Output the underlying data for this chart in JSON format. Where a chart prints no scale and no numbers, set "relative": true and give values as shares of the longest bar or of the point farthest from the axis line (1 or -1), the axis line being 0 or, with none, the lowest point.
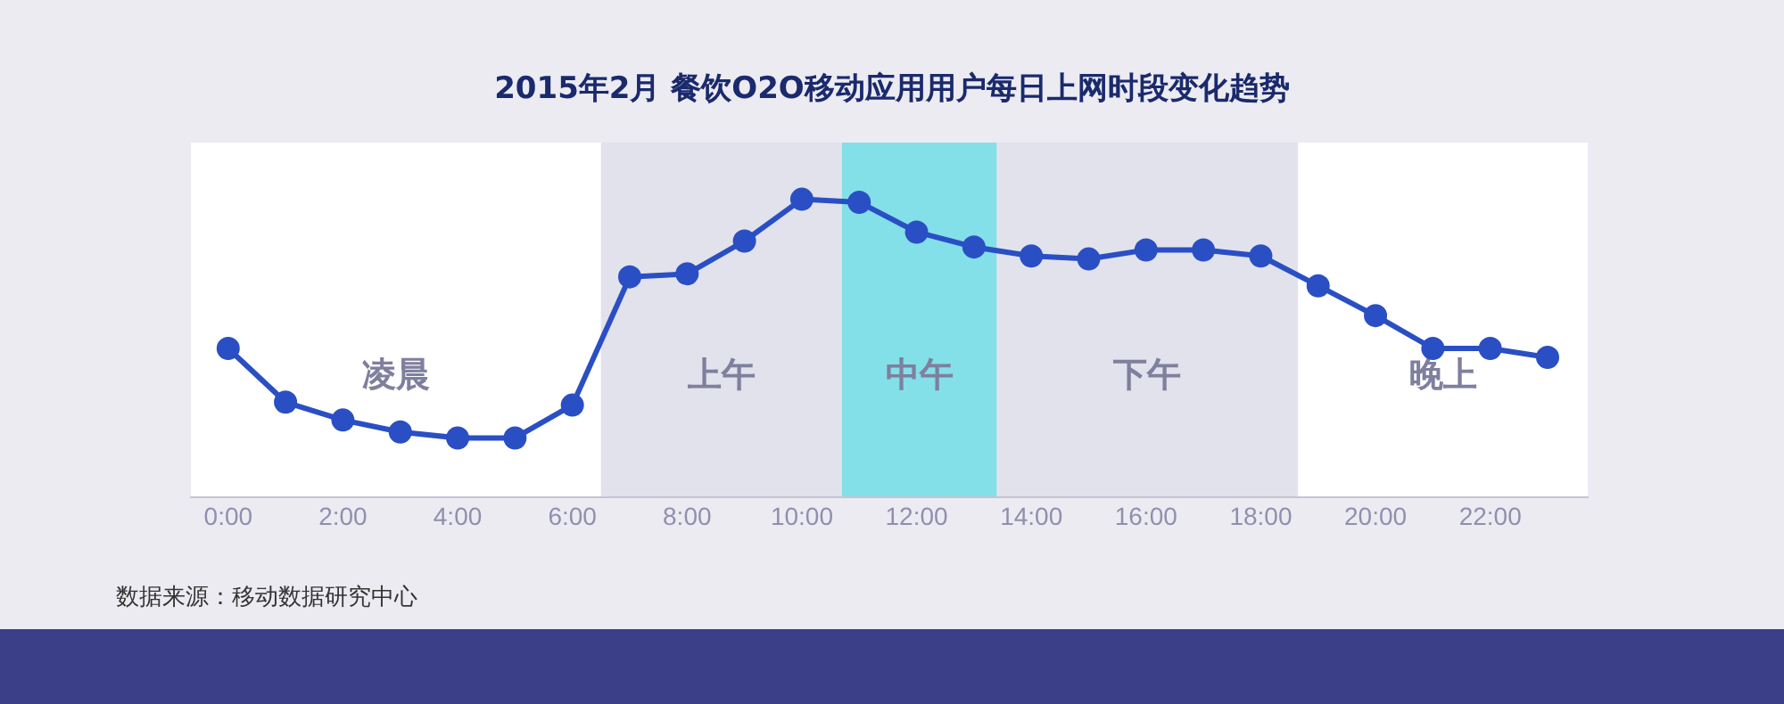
{
  "chart_data": {
    "type": "line",
    "title": "2015年2月 餐饮O2O移动应用用户每日上网时段变化趋势",
    "relative": true,
    "marker": "circle",
    "grid": false,
    "legend": false,
    "x": [
      0,
      1,
      2,
      3,
      4,
      5,
      6,
      7,
      8,
      9,
      10,
      11,
      12,
      13,
      14,
      15,
      16,
      17,
      18,
      19,
      20,
      21,
      22,
      23
    ],
    "series": [
      {
        "color": "#2a4fc4",
        "values": [
          0.5,
          0.32,
          0.26,
          0.22,
          0.2,
          0.2,
          0.31,
          0.74,
          0.75,
          0.86,
          1,
          0.99,
          0.89,
          0.84,
          0.81,
          0.8,
          0.83,
          0.83,
          0.81,
          0.71,
          0.61,
          0.5,
          0.5,
          0.47
        ]
      }
    ],
    "xlim": [
      -0.65,
      23.7
    ],
    "xticks": [
      {
        "value": 0,
        "label": "0:00"
      },
      {
        "value": 2,
        "label": "2:00"
      },
      {
        "value": 4,
        "label": "4:00"
      },
      {
        "value": 6,
        "label": "6:00"
      },
      {
        "value": 8,
        "label": "8:00"
      },
      {
        "value": 10,
        "label": "10:00"
      },
      {
        "value": 12,
        "label": "12:00"
      },
      {
        "value": 14,
        "label": "14:00"
      },
      {
        "value": 16,
        "label": "16:00"
      },
      {
        "value": 18,
        "label": "18:00"
      },
      {
        "value": 20,
        "label": "20:00"
      },
      {
        "value": 22,
        "label": "22:00"
      }
    ],
    "bands": [
      {
        "axis": "x",
        "from": -0.65,
        "to": 6.5,
        "label": "凌晨",
        "color": "#ffffff"
      },
      {
        "axis": "x",
        "from": 6.5,
        "to": 10.7,
        "label": "上午",
        "color": "#e2e2ec"
      },
      {
        "axis": "x",
        "from": 10.7,
        "to": 13.4,
        "label": "中午",
        "color": "#83e0e8"
      },
      {
        "axis": "x",
        "from": 13.4,
        "to": 18.65,
        "label": "下午",
        "color": "#e2e2ec"
      },
      {
        "axis": "x",
        "from": 18.65,
        "to": 23.7,
        "label": "晚上",
        "color": "#ffffff"
      }
    ],
    "annotations": [
      "数据来源：移动数据研究中心"
    ]
  }
}
